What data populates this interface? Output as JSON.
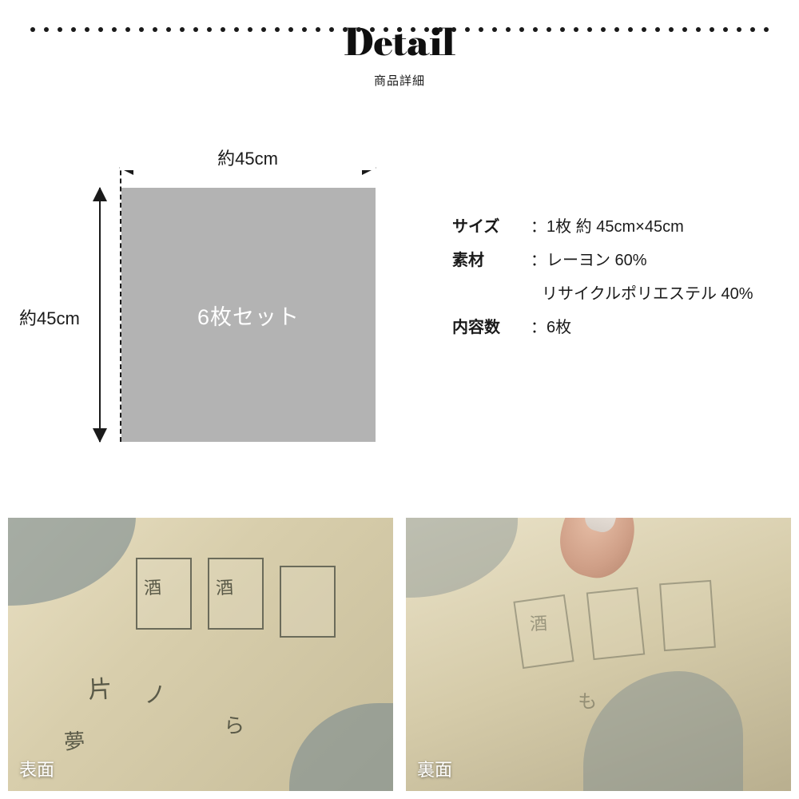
{
  "header": {
    "title_en": "Detail",
    "title_jp": "商品詳細",
    "dot_count": 28,
    "dot_color": "#1a1a1a"
  },
  "diagram": {
    "width_label": "約45cm",
    "height_label": "約45cm",
    "square_label": "6枚セット",
    "square_color": "#b3b3b3",
    "square_text_color": "#ffffff"
  },
  "specs": {
    "rows": [
      {
        "label": "サイズ",
        "value": "1枚 約 45cm×45cm"
      },
      {
        "label": "素材",
        "value": "レーヨン 60%",
        "value2": "リサイクルポリエステル 40%"
      },
      {
        "label": "内容数",
        "value": "6枚"
      }
    ]
  },
  "photos": {
    "front_caption": "表面",
    "back_caption": "裏面",
    "bg_tone_front": "#e8dfc2",
    "bg_tone_back": "#eae2c8"
  }
}
